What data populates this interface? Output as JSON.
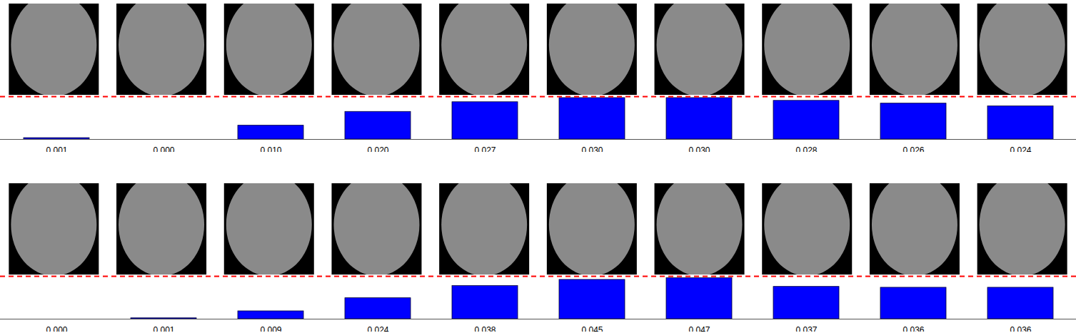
{
  "chart_data": [
    {
      "type": "bar",
      "categories": [
        null,
        null,
        null,
        null,
        null,
        null,
        null,
        null,
        null,
        null
      ],
      "values": [
        0.001,
        0,
        0.01,
        0.02,
        0.027,
        0.03,
        0.03,
        0.028,
        0.026,
        0.024
      ],
      "value_labels": [
        "0.001",
        "0.000",
        "0.010",
        "0.020",
        "0.027",
        "0.030",
        "0.030",
        "0.028",
        "0.026",
        "0.024"
      ],
      "color": "#0000ff",
      "ylim": [
        0,
        0.031
      ],
      "data_labels": true,
      "tick_labels": false
    },
    {
      "type": "bar",
      "categories": [
        null,
        null,
        null,
        null,
        null,
        null,
        null,
        null,
        null,
        null
      ],
      "values": [
        0,
        0.001,
        0.009,
        0.024,
        0.038,
        0.045,
        0.047,
        0.037,
        0.036,
        0.036
      ],
      "value_labels": [
        "0.000",
        "0.001",
        "0.009",
        "0.024",
        "0.038",
        "0.045",
        "0.047",
        "0.037",
        "0.036",
        "0.036"
      ],
      "color": "#0000ff",
      "ylim": [
        0,
        0.049
      ],
      "data_labels": true,
      "tick_labels": false
    }
  ]
}
